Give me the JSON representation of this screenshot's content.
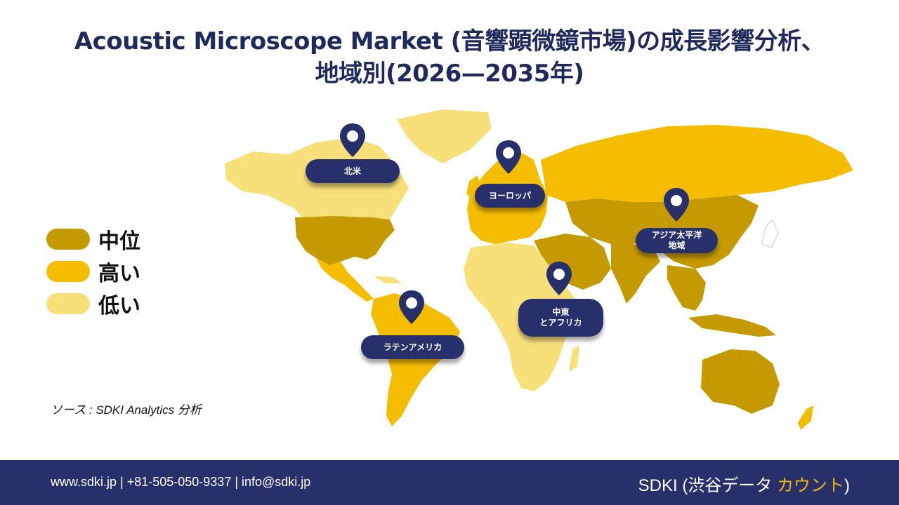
{
  "title": {
    "line1": "Acoustic Microscope Market (音響顕微鏡市場)の成長影響分析、",
    "line2": "地域別(2026—2035年)"
  },
  "legend": [
    {
      "label": "中位",
      "color": "#c49a00"
    },
    {
      "label": "高い",
      "color": "#f5bd00"
    },
    {
      "label": "低い",
      "color": "#f7df7a"
    }
  ],
  "regions": [
    {
      "label": "北米",
      "level": "中位"
    },
    {
      "label": "ヨーロッパ",
      "level": "高い"
    },
    {
      "label": "アジア太平洋\n地域",
      "level": "中位"
    },
    {
      "label": "中東\nとアフリカ",
      "level": "低い"
    },
    {
      "label": "ラテンアメリカ",
      "level": "高い"
    }
  ],
  "source": "ソース : SDKI Analytics 分析",
  "footer": {
    "contact": "www.sdki.jp | +81-505-050-9337 | info@sdki.jp",
    "brand_prefix": "SDKI (渋谷データ ",
    "brand_accent": "カウント",
    "brand_suffix": ")"
  },
  "colors": {
    "navy": "#27306b",
    "medium": "#c49a00",
    "high": "#f5bd00",
    "low": "#f7df7a"
  }
}
